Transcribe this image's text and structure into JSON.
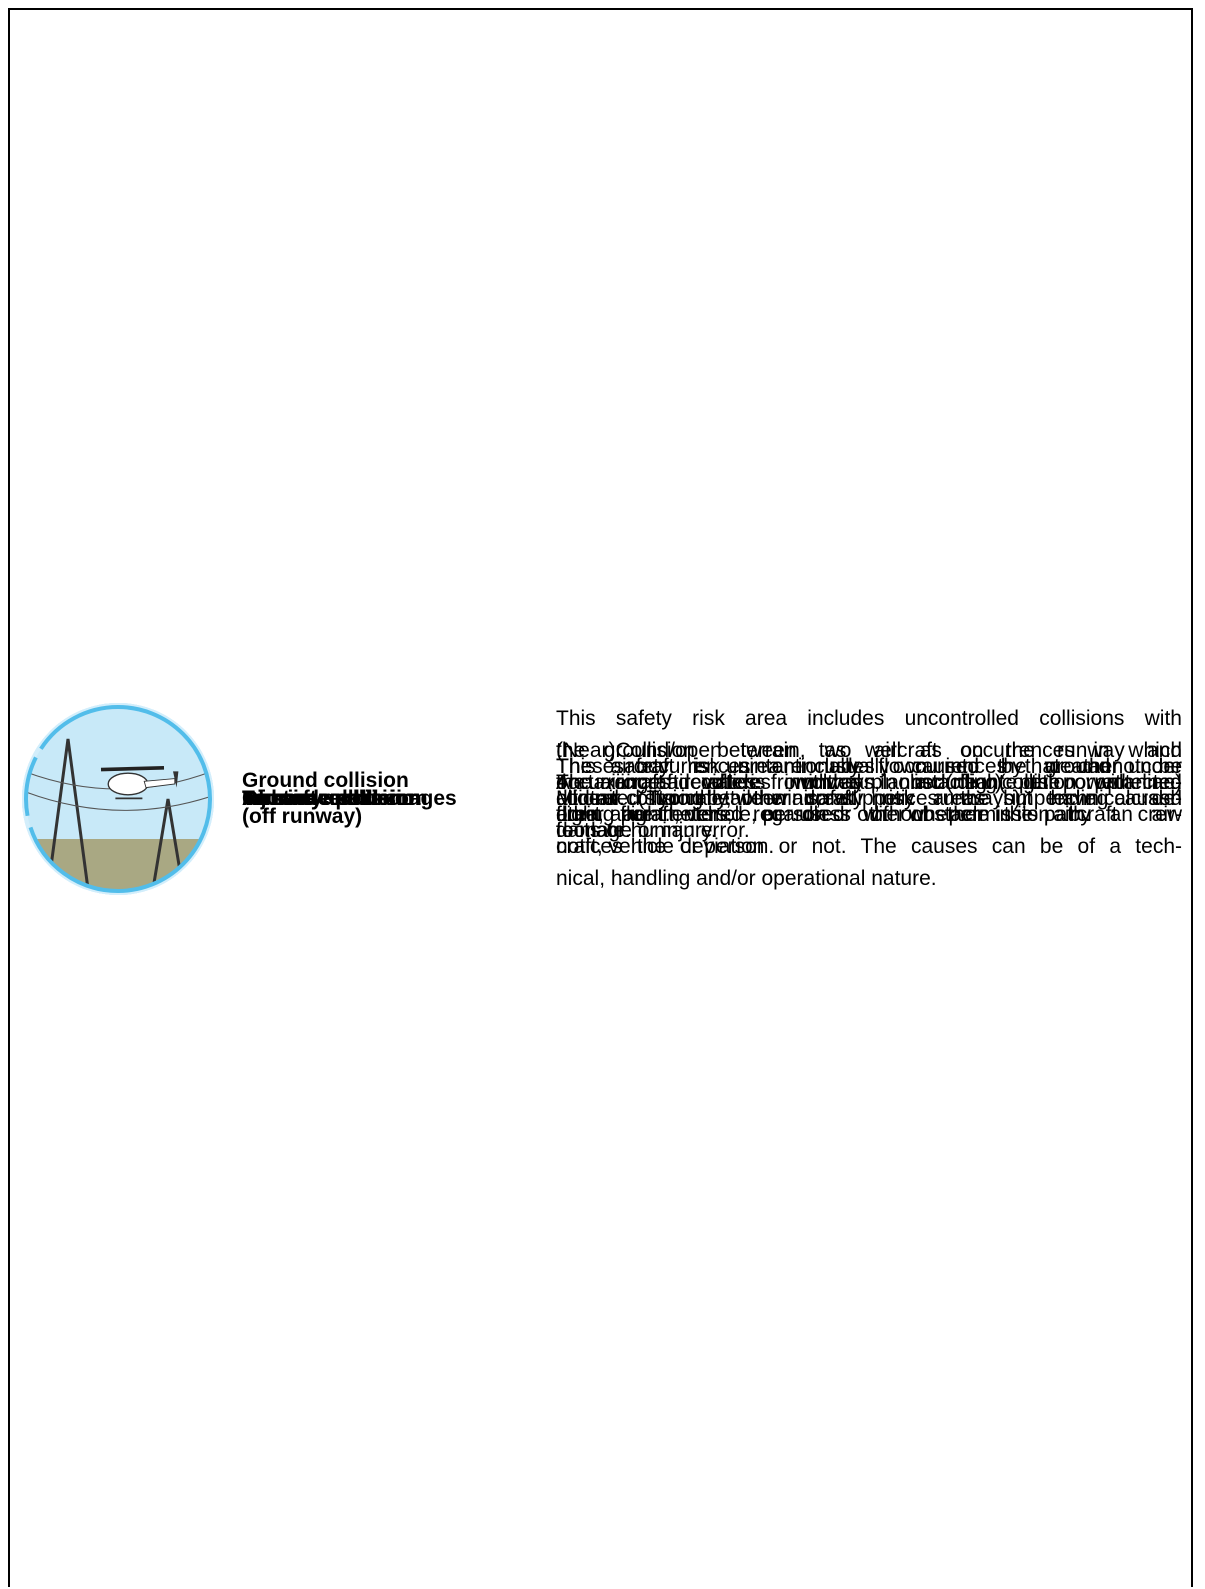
{
  "table": {
    "rows": [
      {
        "label": [
          "Aircraft upset"
        ],
        "description": [
          "This safety risk area includes uncontrolled collisions with",
          "the ground/open terrain, as well as occurrences in which",
          "the aircraft deviates from the planned flight path or planned",
          "flight parameters, regardless of whether the aircraft crew",
          "notices the deviation or not. The causes can be of a tech-",
          "nical, handling and/or operational nature."
        ]
      },
      {
        "label": [
          "Runway excursion"
        ],
        "description": [
          "These occurrences are usually caused by weather con-",
          "ditions (strong tail wind, slippery runways), technical de-",
          "fects or human error."
        ]
      },
      {
        "label": [
          "Injuries and damages"
        ],
        "description": [
          "This safety risk area includes occurrences that cannot be",
          "allocated to the other safety risk areas but have caused",
          "damage or injury."
        ]
      },
      {
        "label": [
          "Runway collision"
        ],
        "description": [
          "(Near)Collision between two aircraft on the runway and",
          "occurrences where runways, including the protected",
          "area, are entered or used without permission by an air-",
          "craft, vehicle or person."
        ]
      },
      {
        "label": [
          "Airborne collision"
        ],
        "description": [
          "Mid-air collision between aircraft."
        ]
      },
      {
        "label": [
          "Ground collision",
          "(off runway)"
        ],
        "description": [
          "A taxiing aircraft is involved in a (near)collision with an-",
          "other aircraft, vehicle, person or other obstacle in its path."
        ]
      },
      {
        "label": [
          "Terrain collision"
        ],
        "description": [
          "The aircraft is unintentionally flown into the ground under",
          "control. Typically, the crew notices the impending crash",
          "too late."
        ]
      },
      {
        "label": [
          "Obstacle collision"
        ],
        "description": [
          "The aircraft collides with an obstacle (e.g. power line)",
          "during flight."
        ]
      }
    ]
  }
}
